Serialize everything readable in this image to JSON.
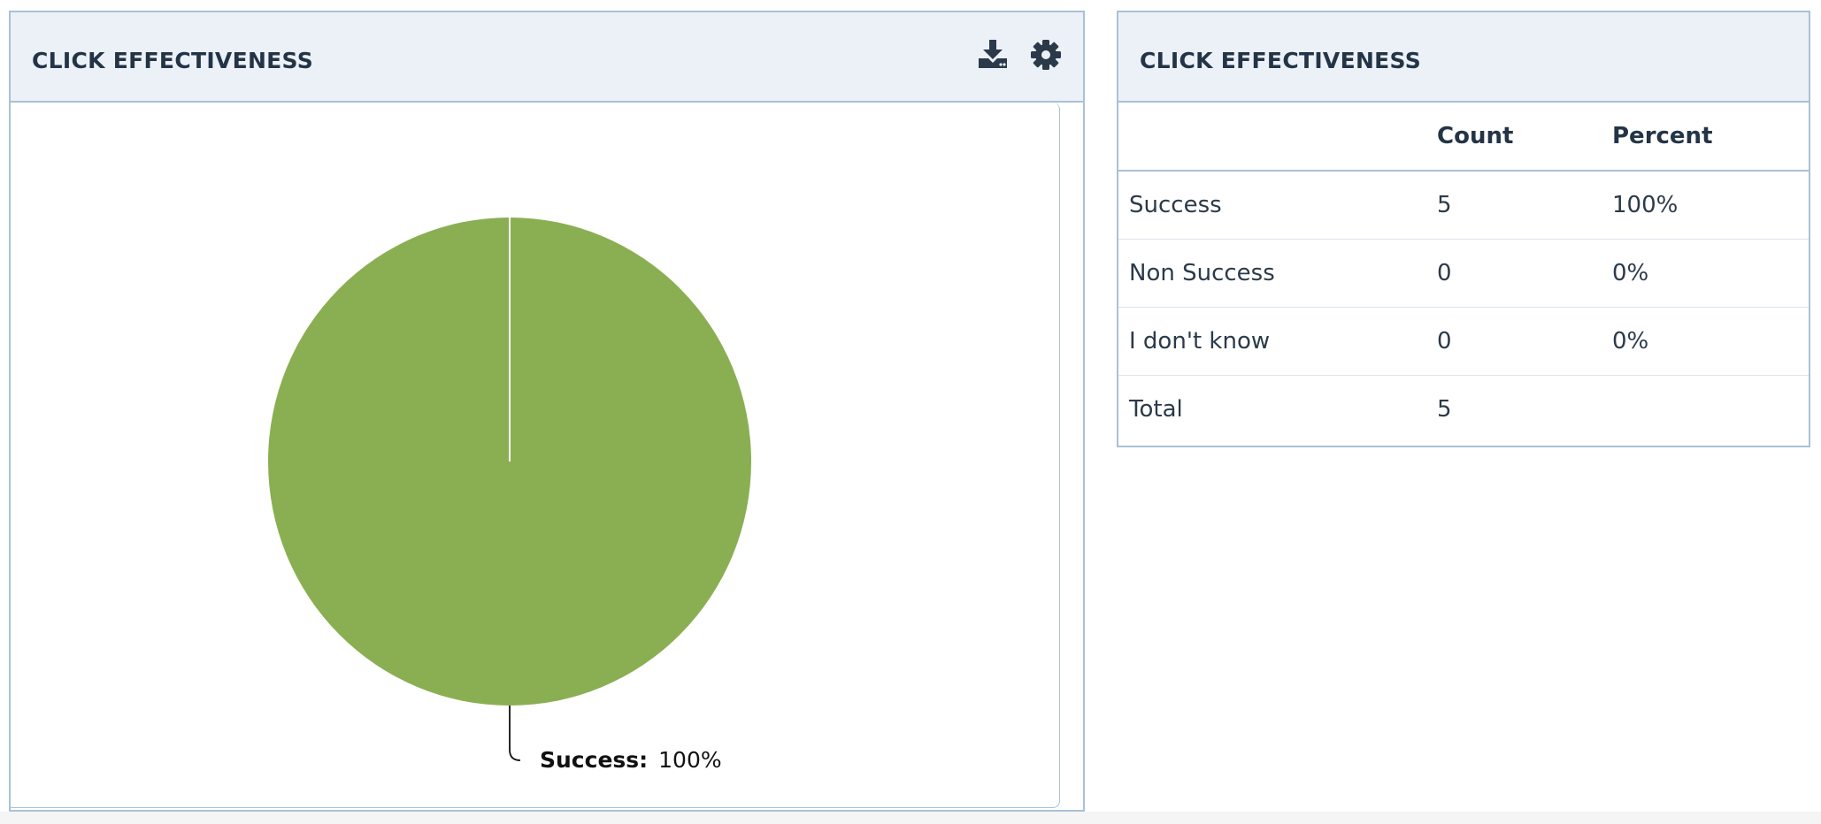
{
  "left_panel": {
    "title": "CLICK EFFECTIVENESS",
    "icons": [
      "download-icon",
      "gear-icon"
    ]
  },
  "right_panel": {
    "title": "CLICK EFFECTIVENESS",
    "table": {
      "headers": [
        "",
        "Count",
        "Percent"
      ],
      "rows": [
        {
          "label": "Success",
          "count": "5",
          "percent": "100%"
        },
        {
          "label": "Non Success",
          "count": "0",
          "percent": "0%"
        },
        {
          "label": "I don't know",
          "count": "0",
          "percent": "0%"
        },
        {
          "label": "Total",
          "count": "5",
          "percent": ""
        }
      ]
    }
  },
  "colors": {
    "accent": "#8aaf52",
    "header_bg": "#ecf1f8",
    "border": "#a9c1d6",
    "text": "#2b3a4a"
  },
  "chart_data": {
    "type": "pie",
    "slices": [
      {
        "label": "Success",
        "value": 100,
        "display": "100%",
        "color": "#8aaf52"
      },
      {
        "label": "Non Success",
        "value": 0,
        "display": "0%"
      },
      {
        "label": "I don't know",
        "value": 0,
        "display": "0%"
      }
    ],
    "data_labels": [
      {
        "label": "Success:",
        "value": "100%"
      }
    ]
  }
}
